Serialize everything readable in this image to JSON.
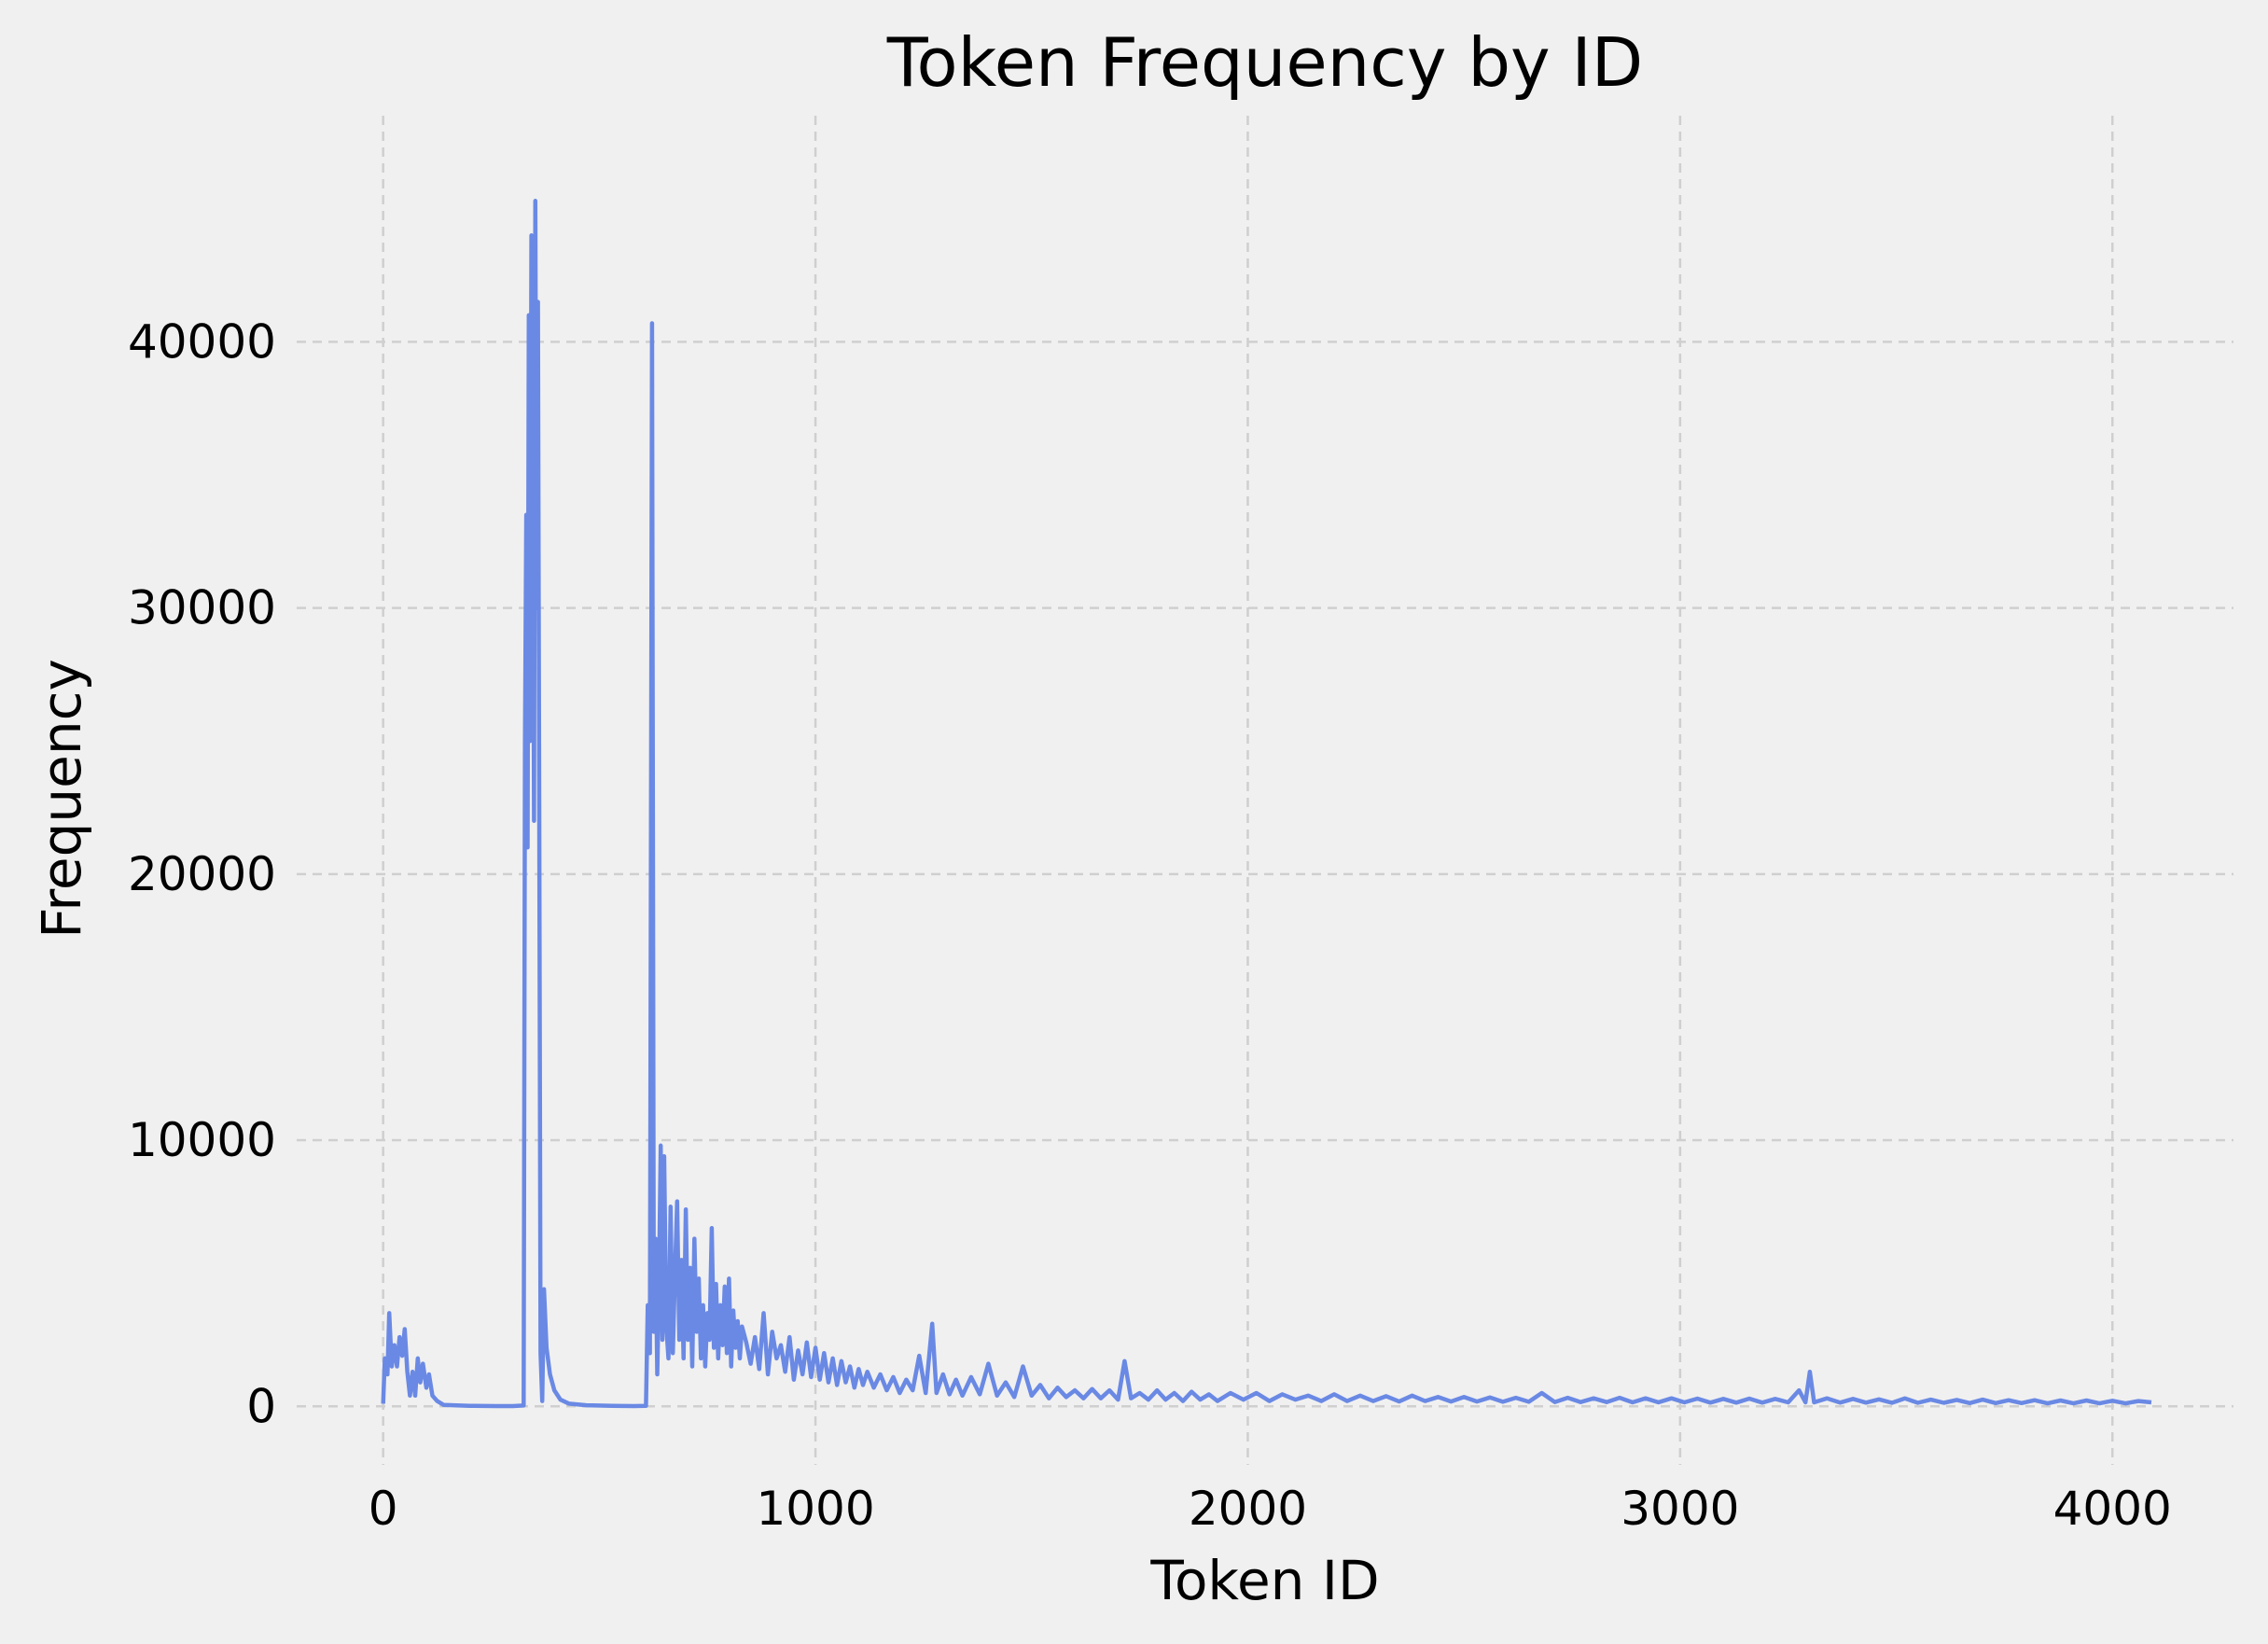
{
  "chart_data": {
    "type": "line",
    "title": "Token Frequency by ID",
    "xlabel": "Token ID",
    "ylabel": "Frequency",
    "xlim": [
      -200,
      4280
    ],
    "ylim": [
      -2200,
      48500
    ],
    "xticks": [
      0,
      1000,
      2000,
      3000,
      4000
    ],
    "yticks": [
      0,
      10000,
      20000,
      30000,
      40000
    ],
    "grid": true,
    "series": [
      {
        "color": "#6a89e4",
        "points": [
          [
            0,
            100
          ],
          [
            4,
            1800
          ],
          [
            10,
            1200
          ],
          [
            14,
            3500
          ],
          [
            20,
            1500
          ],
          [
            26,
            2300
          ],
          [
            32,
            1500
          ],
          [
            38,
            2600
          ],
          [
            44,
            1900
          ],
          [
            50,
            2900
          ],
          [
            56,
            1300
          ],
          [
            62,
            400
          ],
          [
            68,
            1300
          ],
          [
            74,
            400
          ],
          [
            80,
            1800
          ],
          [
            86,
            900
          ],
          [
            92,
            1600
          ],
          [
            100,
            700
          ],
          [
            106,
            1200
          ],
          [
            114,
            400
          ],
          [
            125,
            200
          ],
          [
            140,
            50
          ],
          [
            200,
            20
          ],
          [
            260,
            10
          ],
          [
            300,
            10
          ],
          [
            325,
            30
          ],
          [
            328,
            25000
          ],
          [
            331,
            33500
          ],
          [
            334,
            21000
          ],
          [
            337,
            41000
          ],
          [
            340,
            25000
          ],
          [
            343,
            44000
          ],
          [
            346,
            38000
          ],
          [
            349,
            22000
          ],
          [
            352,
            45300
          ],
          [
            355,
            30000
          ],
          [
            358,
            41500
          ],
          [
            361,
            22500
          ],
          [
            364,
            2000
          ],
          [
            368,
            200
          ],
          [
            372,
            4400
          ],
          [
            378,
            2200
          ],
          [
            386,
            1200
          ],
          [
            396,
            600
          ],
          [
            410,
            250
          ],
          [
            430,
            100
          ],
          [
            470,
            40
          ],
          [
            530,
            20
          ],
          [
            580,
            10
          ],
          [
            608,
            20
          ],
          [
            612,
            3800
          ],
          [
            617,
            2000
          ],
          [
            622,
            40700
          ],
          [
            626,
            2800
          ],
          [
            630,
            6300
          ],
          [
            634,
            1200
          ],
          [
            638,
            4500
          ],
          [
            642,
            9800
          ],
          [
            646,
            2500
          ],
          [
            650,
            9400
          ],
          [
            655,
            3000
          ],
          [
            660,
            1800
          ],
          [
            665,
            7500
          ],
          [
            670,
            2000
          ],
          [
            675,
            5000
          ],
          [
            680,
            7700
          ],
          [
            685,
            2500
          ],
          [
            690,
            5500
          ],
          [
            695,
            1800
          ],
          [
            700,
            7400
          ],
          [
            705,
            2500
          ],
          [
            710,
            5200
          ],
          [
            715,
            1500
          ],
          [
            720,
            6300
          ],
          [
            725,
            2800
          ],
          [
            730,
            4800
          ],
          [
            735,
            1800
          ],
          [
            740,
            3800
          ],
          [
            745,
            1500
          ],
          [
            750,
            3500
          ],
          [
            755,
            2500
          ],
          [
            760,
            6700
          ],
          [
            765,
            2200
          ],
          [
            770,
            4600
          ],
          [
            775,
            1800
          ],
          [
            780,
            3800
          ],
          [
            785,
            2300
          ],
          [
            790,
            4500
          ],
          [
            795,
            2000
          ],
          [
            800,
            4800
          ],
          [
            805,
            1500
          ],
          [
            810,
            3600
          ],
          [
            815,
            2200
          ],
          [
            820,
            3200
          ],
          [
            825,
            1800
          ],
          [
            830,
            3000
          ],
          [
            840,
            2400
          ],
          [
            850,
            1600
          ],
          [
            860,
            2600
          ],
          [
            870,
            1400
          ],
          [
            880,
            3500
          ],
          [
            890,
            1200
          ],
          [
            900,
            2800
          ],
          [
            910,
            1800
          ],
          [
            920,
            2300
          ],
          [
            930,
            1300
          ],
          [
            940,
            2600
          ],
          [
            950,
            1000
          ],
          [
            960,
            2100
          ],
          [
            970,
            1200
          ],
          [
            980,
            2400
          ],
          [
            990,
            1100
          ],
          [
            1000,
            2200
          ],
          [
            1010,
            1000
          ],
          [
            1020,
            2000
          ],
          [
            1030,
            900
          ],
          [
            1040,
            1800
          ],
          [
            1050,
            800
          ],
          [
            1060,
            1700
          ],
          [
            1070,
            900
          ],
          [
            1080,
            1500
          ],
          [
            1090,
            700
          ],
          [
            1100,
            1400
          ],
          [
            1110,
            800
          ],
          [
            1120,
            1300
          ],
          [
            1135,
            700
          ],
          [
            1150,
            1200
          ],
          [
            1165,
            600
          ],
          [
            1180,
            1100
          ],
          [
            1195,
            500
          ],
          [
            1210,
            1000
          ],
          [
            1225,
            600
          ],
          [
            1240,
            1900
          ],
          [
            1255,
            500
          ],
          [
            1270,
            3100
          ],
          [
            1280,
            500
          ],
          [
            1295,
            1200
          ],
          [
            1310,
            450
          ],
          [
            1325,
            1000
          ],
          [
            1340,
            400
          ],
          [
            1360,
            1100
          ],
          [
            1380,
            450
          ],
          [
            1400,
            1600
          ],
          [
            1420,
            400
          ],
          [
            1440,
            900
          ],
          [
            1460,
            350
          ],
          [
            1480,
            1500
          ],
          [
            1500,
            400
          ],
          [
            1520,
            800
          ],
          [
            1540,
            300
          ],
          [
            1560,
            700
          ],
          [
            1580,
            350
          ],
          [
            1600,
            600
          ],
          [
            1620,
            300
          ],
          [
            1640,
            650
          ],
          [
            1660,
            300
          ],
          [
            1680,
            600
          ],
          [
            1700,
            250
          ],
          [
            1715,
            1700
          ],
          [
            1730,
            300
          ],
          [
            1750,
            500
          ],
          [
            1770,
            250
          ],
          [
            1790,
            600
          ],
          [
            1810,
            250
          ],
          [
            1830,
            500
          ],
          [
            1850,
            200
          ],
          [
            1870,
            550
          ],
          [
            1890,
            250
          ],
          [
            1910,
            450
          ],
          [
            1930,
            200
          ],
          [
            1960,
            500
          ],
          [
            1990,
            250
          ],
          [
            2020,
            500
          ],
          [
            2050,
            200
          ],
          [
            2080,
            450
          ],
          [
            2110,
            250
          ],
          [
            2140,
            400
          ],
          [
            2170,
            200
          ],
          [
            2200,
            450
          ],
          [
            2230,
            200
          ],
          [
            2260,
            400
          ],
          [
            2290,
            200
          ],
          [
            2320,
            380
          ],
          [
            2350,
            180
          ],
          [
            2380,
            400
          ],
          [
            2410,
            200
          ],
          [
            2440,
            350
          ],
          [
            2470,
            180
          ],
          [
            2500,
            350
          ],
          [
            2530,
            180
          ],
          [
            2560,
            330
          ],
          [
            2590,
            170
          ],
          [
            2620,
            320
          ],
          [
            2650,
            170
          ],
          [
            2680,
            500
          ],
          [
            2710,
            160
          ],
          [
            2740,
            320
          ],
          [
            2770,
            160
          ],
          [
            2800,
            300
          ],
          [
            2830,
            160
          ],
          [
            2860,
            320
          ],
          [
            2890,
            150
          ],
          [
            2920,
            300
          ],
          [
            2950,
            150
          ],
          [
            2980,
            300
          ],
          [
            3010,
            150
          ],
          [
            3040,
            290
          ],
          [
            3070,
            140
          ],
          [
            3100,
            280
          ],
          [
            3130,
            140
          ],
          [
            3160,
            290
          ],
          [
            3190,
            140
          ],
          [
            3220,
            280
          ],
          [
            3250,
            150
          ],
          [
            3275,
            600
          ],
          [
            3290,
            150
          ],
          [
            3300,
            1300
          ],
          [
            3310,
            150
          ],
          [
            3340,
            300
          ],
          [
            3370,
            140
          ],
          [
            3400,
            280
          ],
          [
            3430,
            140
          ],
          [
            3460,
            260
          ],
          [
            3490,
            130
          ],
          [
            3520,
            300
          ],
          [
            3550,
            130
          ],
          [
            3580,
            250
          ],
          [
            3610,
            130
          ],
          [
            3640,
            240
          ],
          [
            3670,
            120
          ],
          [
            3700,
            250
          ],
          [
            3730,
            120
          ],
          [
            3760,
            230
          ],
          [
            3790,
            120
          ],
          [
            3820,
            230
          ],
          [
            3850,
            110
          ],
          [
            3880,
            220
          ],
          [
            3910,
            110
          ],
          [
            3940,
            220
          ],
          [
            3970,
            110
          ],
          [
            4000,
            210
          ],
          [
            4030,
            110
          ],
          [
            4060,
            200
          ],
          [
            4090,
            150
          ]
        ]
      }
    ]
  }
}
